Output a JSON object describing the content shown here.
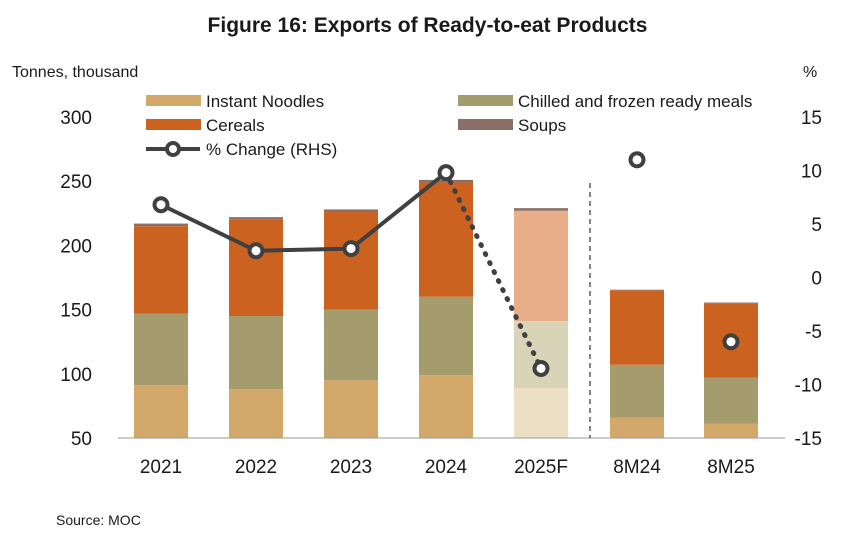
{
  "title": "Figure 16: Exports of Ready-to-eat Products",
  "left_axis_unit": "Tonnes, thousand",
  "right_axis_unit": "%",
  "source": "Source: MOC",
  "chart_data": {
    "type": "bar",
    "stacked": true,
    "categories": [
      "2021",
      "2022",
      "2023",
      "2024",
      "2025F",
      "8M24",
      "8M25"
    ],
    "forecast_categories": [
      "2025F"
    ],
    "ylim": [
      50,
      300
    ],
    "yticks": [
      50,
      100,
      150,
      200,
      250,
      300
    ],
    "y2lim": [
      -15,
      15
    ],
    "y2ticks": [
      -15,
      -10,
      -5,
      0,
      5,
      10,
      15
    ],
    "series": [
      {
        "name": "Instant Noodles",
        "color": "#d2a96b",
        "forecast_color": "#eddfc6",
        "values": [
          91,
          88,
          95,
          99,
          89,
          66,
          61
        ]
      },
      {
        "name": "Chilled and frozen ready meals",
        "color": "#a59c6e",
        "forecast_color": "#d9d3b8",
        "values": [
          56,
          57,
          55,
          61,
          52,
          41,
          36
        ]
      },
      {
        "name": "Cereals",
        "color": "#cc6220",
        "forecast_color": "#e8ae8a",
        "values": [
          68,
          75,
          76,
          89,
          86,
          58,
          58
        ]
      },
      {
        "name": "Soups",
        "color": "#8b6e66",
        "forecast_color": "#8b6e66",
        "values": [
          2,
          2,
          2,
          2,
          2,
          0.5,
          0.5
        ]
      }
    ],
    "line": {
      "name": "% Change (RHS)",
      "color": "#404040",
      "values": [
        6.8,
        2.5,
        2.7,
        9.8,
        -8.5,
        11,
        -6
      ]
    },
    "divider_after": "2025F",
    "legend_position": "top"
  }
}
